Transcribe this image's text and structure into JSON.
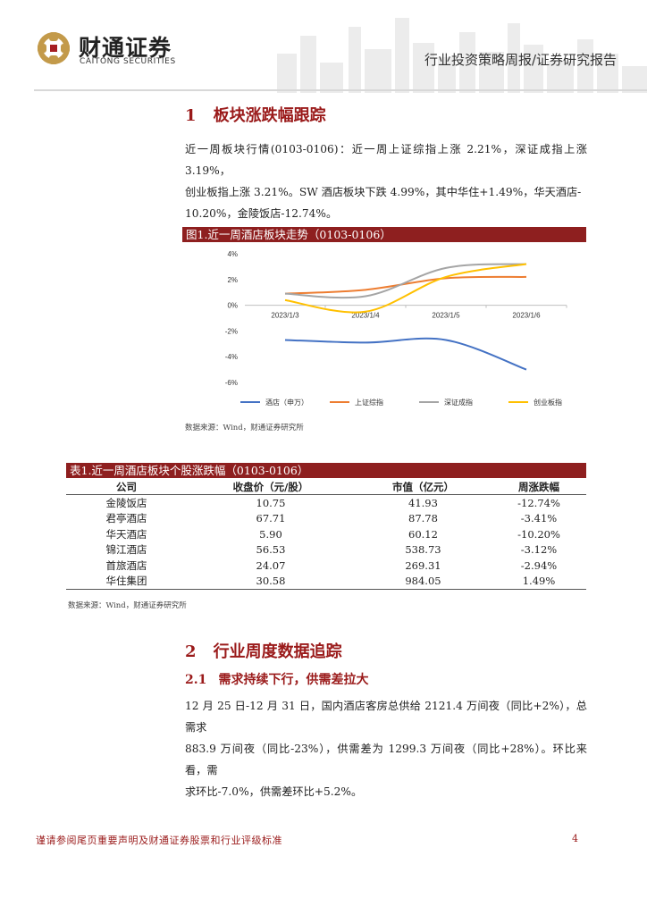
{
  "header": {
    "brand_cn": "财通证券",
    "brand_en": "CAITONG SECURITIES",
    "report_type": "行业投资策略周报/证券研究报告"
  },
  "section1": {
    "num": "1",
    "title": "板块涨跌幅跟踪",
    "para_lines": [
      "近一周板块行情(0103-0106)：近一周上证综指上涨 2.21%，深证成指上涨 3.19%，",
      "创业板指上涨  3.21%。SW  酒店板块下跌  4.99%，其中华住+1.49%，华天酒店-",
      "10.20%，金陵饭店-12.74%。"
    ]
  },
  "figure1": {
    "caption": "图1.近一周酒店板块走势（0103-0106）",
    "source": "数据来源：Wind，财通证券研究所"
  },
  "chart_data": {
    "type": "line",
    "title": "",
    "x": [
      "2023/1/3",
      "2023/1/4",
      "2023/1/5",
      "2023/1/6"
    ],
    "xlabel": "",
    "ylabel": "",
    "ylim": [
      -6,
      4
    ],
    "yticks": [
      "4%",
      "2%",
      "0%",
      "-2%",
      "-4%",
      "-6%"
    ],
    "yticks_values": [
      4,
      2,
      0,
      -2,
      -4,
      -6
    ],
    "grid": false,
    "legend_position": "bottom",
    "series": [
      {
        "name": "酒店（申万）",
        "color": "#4472c4",
        "values": [
          -2.7,
          -2.9,
          -2.7,
          -5.0
        ]
      },
      {
        "name": "上证综指",
        "color": "#ed7d31",
        "values": [
          0.9,
          1.2,
          2.1,
          2.2
        ]
      },
      {
        "name": "深证成指",
        "color": "#a5a5a5",
        "values": [
          0.9,
          0.7,
          2.9,
          3.2
        ]
      },
      {
        "name": "创业板指",
        "color": "#ffc000",
        "values": [
          0.4,
          -0.5,
          2.2,
          3.2
        ]
      }
    ]
  },
  "table1": {
    "caption": "表1.近一周酒店板块个股涨跌幅（0103-0106）",
    "headers": [
      "公司",
      "收盘价（元/股）",
      "市值（亿元）",
      "周涨跌幅"
    ],
    "rows": [
      [
        "金陵饭店",
        "10.75",
        "41.93",
        "-12.74%"
      ],
      [
        "君亭酒店",
        "67.71",
        "87.78",
        "-3.41%"
      ],
      [
        "华天酒店",
        "5.90",
        "60.12",
        "-10.20%"
      ],
      [
        "锦江酒店",
        "56.53",
        "538.73",
        "-3.12%"
      ],
      [
        "首旅酒店",
        "24.07",
        "269.31",
        "-2.94%"
      ],
      [
        "华住集团",
        "30.58",
        "984.05",
        "1.49%"
      ]
    ],
    "source": "数据来源：Wind，财通证券研究所"
  },
  "section2": {
    "num": "2",
    "title": "行业周度数据追踪",
    "sub_num": "2.1",
    "sub_title": "需求持续下行，供需差拉大",
    "para_lines": [
      "12 月 25 日-12 月 31 日，国内酒店客房总供给 2121.4 万间夜（同比+2%），总需求",
      "883.9 万间夜（同比-23%），供需差为 1299.3 万间夜（同比+28%）。环比来看，需",
      "求环比-7.0%，供需差环比+5.2%。"
    ]
  },
  "footer": {
    "note": "谨请参阅尾页重要声明及财通证券股票和行业评级标准",
    "page": "4"
  },
  "colors": {
    "accent": "#9a1a1a",
    "bar": "#8e1f1f"
  }
}
